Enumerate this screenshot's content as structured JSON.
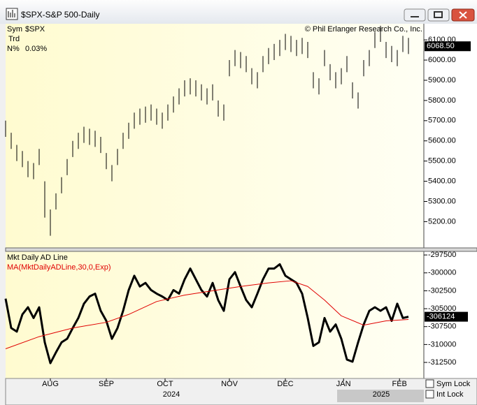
{
  "window": {
    "title": "$SPX-S&P 500-Daily"
  },
  "info": {
    "sym_label": "Sym",
    "sym": "$SPX",
    "trd_label": "Trd",
    "n_label": "N%",
    "n_value": "0.03%",
    "copyright": "© Phil Erlanger Research Co., Inc."
  },
  "chart_data": [
    {
      "type": "ohlc",
      "xlim": [
        0,
        73
      ],
      "ylim": [
        5070,
        6180
      ],
      "high": [
        5700,
        5640,
        5580,
        5550,
        5500,
        5490,
        5560,
        5400,
        5260,
        5340,
        5420,
        5510,
        5600,
        5640,
        5670,
        5660,
        5650,
        5620,
        5540,
        5480,
        5560,
        5640,
        5690,
        5740,
        5760,
        5770,
        5780,
        5760,
        5740,
        5780,
        5820,
        5860,
        5900,
        5910,
        5900,
        5880,
        5860,
        5880,
        5800,
        5780,
        6000,
        6050,
        6040,
        6020,
        5960,
        5940,
        6020,
        6060,
        6080,
        6100,
        6130,
        6120,
        6100,
        6110,
        6090,
        5940,
        5910,
        6050,
        5980,
        5940,
        5960,
        6020,
        5890,
        5840,
        6000,
        6050,
        6140,
        6170,
        6090,
        6070,
        6050,
        6120,
        6110
      ],
      "low": [
        5620,
        5560,
        5500,
        5470,
        5420,
        5410,
        5480,
        5220,
        5130,
        5260,
        5340,
        5430,
        5520,
        5560,
        5590,
        5580,
        5570,
        5540,
        5460,
        5400,
        5480,
        5560,
        5610,
        5660,
        5680,
        5690,
        5700,
        5680,
        5660,
        5700,
        5740,
        5780,
        5820,
        5830,
        5820,
        5800,
        5780,
        5800,
        5720,
        5700,
        5920,
        5970,
        5960,
        5940,
        5880,
        5860,
        5940,
        5980,
        6000,
        6020,
        6050,
        6040,
        6020,
        6030,
        6010,
        5860,
        5830,
        5970,
        5900,
        5860,
        5880,
        5940,
        5810,
        5760,
        5920,
        5970,
        6060,
        6090,
        6010,
        5990,
        5970,
        6040,
        6030
      ],
      "color": "#000000",
      "current": {
        "value": 6068.5,
        "label": "6068.50"
      },
      "yticks": [
        {
          "value": 5200,
          "label": "5200.00"
        },
        {
          "value": 5300,
          "label": "5300.00"
        },
        {
          "value": 5400,
          "label": "5400.00"
        },
        {
          "value": 5500,
          "label": "5500.00"
        },
        {
          "value": 5600,
          "label": "5600.00"
        },
        {
          "value": 5700,
          "label": "5700.00"
        },
        {
          "value": 5800,
          "label": "5800.00"
        },
        {
          "value": 5900,
          "label": "5900.00"
        },
        {
          "value": 6000,
          "label": "6000.00"
        },
        {
          "value": 6100,
          "label": "6100.00"
        }
      ]
    },
    {
      "type": "line",
      "xlim": [
        0,
        73
      ],
      "ylim": [
        -314740,
        -297000
      ],
      "series": [
        {
          "name": "Mkt Daily AD Line",
          "color": "#000000",
          "width": 3,
          "values": [
            -303600,
            -307700,
            -308200,
            -305800,
            -304800,
            -306300,
            -304800,
            -309700,
            -312600,
            -311100,
            -309700,
            -309200,
            -307700,
            -306300,
            -304300,
            -303300,
            -302900,
            -305300,
            -306700,
            -309200,
            -307700,
            -305300,
            -302400,
            -300400,
            -301900,
            -301400,
            -302400,
            -302900,
            -303300,
            -303800,
            -302400,
            -302900,
            -300900,
            -299400,
            -300900,
            -302400,
            -303300,
            -301400,
            -303800,
            -305300,
            -300900,
            -299900,
            -301900,
            -303800,
            -304800,
            -302900,
            -300900,
            -299400,
            -299400,
            -298800,
            -300400,
            -300900,
            -301400,
            -302900,
            -306300,
            -310200,
            -309700,
            -306300,
            -308200,
            -307200,
            -309200,
            -312100,
            -312400,
            -309700,
            -307200,
            -305300,
            -304800,
            -305300,
            -304800,
            -306700,
            -304300,
            -306300,
            -306124
          ]
        },
        {
          "name": "MA(MktDailyADLine,30,0,Exp)",
          "color": "#e00000",
          "width": 1,
          "x": [
            0,
            6,
            12,
            18,
            22,
            27,
            32,
            37,
            42,
            47,
            51,
            54,
            57,
            60,
            64,
            68,
            72
          ],
          "values": [
            -310600,
            -308900,
            -307700,
            -306900,
            -305800,
            -304000,
            -303100,
            -302500,
            -301900,
            -301400,
            -301100,
            -301900,
            -303800,
            -306000,
            -307300,
            -306700,
            -306500
          ]
        }
      ],
      "current": -306124,
      "yticks": [
        -297500,
        -300000,
        -302500,
        -305000,
        -307500,
        -310000,
        -312500
      ],
      "xticks": [
        {
          "value": 8,
          "label": "AUG"
        },
        {
          "value": 18,
          "label": "SEP"
        },
        {
          "value": 28.5,
          "label": "OCT"
        },
        {
          "value": 40,
          "label": "NOV"
        },
        {
          "value": 50,
          "label": "DEC"
        },
        {
          "value": 60.4,
          "label": "JAN"
        },
        {
          "value": 70.4,
          "label": "FEB"
        }
      ],
      "years": [
        "2024",
        "2025"
      ]
    }
  ],
  "controls": {
    "sym_lock": "Sym Lock",
    "int_lock": "Int Lock"
  }
}
